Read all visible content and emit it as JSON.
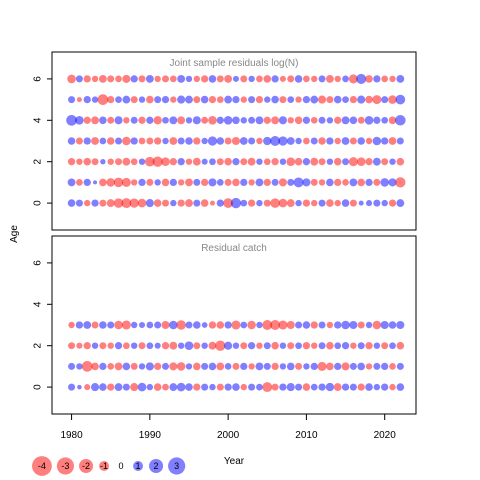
{
  "chart_data": [
    {
      "type": "scatter",
      "title": "Joint sample residuals log(N)",
      "ylabel": "Age",
      "xlim": [
        1977.5,
        2024
      ],
      "ylim": [
        -1.3,
        7.3
      ],
      "x_ticks": [
        1980,
        1990,
        2000,
        2010,
        2020
      ],
      "y_ticks": [
        0,
        2,
        4,
        6
      ],
      "years": [
        1980,
        1981,
        1982,
        1983,
        1984,
        1985,
        1986,
        1987,
        1988,
        1989,
        1990,
        1991,
        1992,
        1993,
        1994,
        1995,
        1996,
        1997,
        1998,
        1999,
        2000,
        2001,
        2002,
        2003,
        2004,
        2005,
        2006,
        2007,
        2008,
        2009,
        2010,
        2011,
        2012,
        2013,
        2014,
        2015,
        2016,
        2017,
        2018,
        2019,
        2020,
        2021,
        2022
      ],
      "series": [
        {
          "age": 6,
          "residuals": [
            -1.8,
            1.2,
            -1.3,
            -1.0,
            -1.5,
            -1.2,
            -1.1,
            -1.6,
            1.3,
            -1.2,
            1.5,
            -1.0,
            -1.2,
            -1.1,
            1.5,
            1.0,
            -1.0,
            -1.3,
            1.4,
            -1.2,
            -1.5,
            0.9,
            -1.2,
            1.0,
            -1.1,
            -1.4,
            1.3,
            -0.9,
            -1.2,
            1.4,
            -1.1,
            -1.0,
            1.2,
            -1.5,
            -1.0,
            1.1,
            -2.0,
            2.5,
            -1.4,
            1.3,
            -1.1,
            -1.0,
            1.5
          ]
        },
        {
          "age": 5,
          "residuals": [
            1.2,
            -0.6,
            1.3,
            1.0,
            -2.8,
            -1.3,
            1.1,
            1.5,
            -1.2,
            1.0,
            -1.4,
            1.2,
            1.3,
            -1.0,
            1.6,
            1.5,
            -1.2,
            1.4,
            -1.3,
            -1.1,
            1.5,
            1.3,
            -1.0,
            1.2,
            -1.3,
            1.0,
            1.4,
            -1.2,
            1.1,
            -1.0,
            1.3,
            1.5,
            -1.6,
            -1.2,
            1.4,
            1.1,
            -1.3,
            1.6,
            -1.4,
            -2.0,
            1.2,
            -1.8,
            2.3
          ]
        },
        {
          "age": 4,
          "residuals": [
            2.8,
            1.8,
            -1.3,
            -1.5,
            1.4,
            -1.2,
            1.6,
            -1.0,
            1.2,
            -1.3,
            1.3,
            -1.7,
            1.1,
            1.5,
            -1.5,
            1.0,
            1.6,
            -1.2,
            -1.8,
            1.3,
            1.8,
            1.4,
            1.0,
            1.2,
            1.5,
            -1.3,
            -1.5,
            1.6,
            -1.0,
            -1.4,
            1.3,
            -1.1,
            1.2,
            1.0,
            -1.3,
            1.5,
            1.4,
            -1.2,
            1.8,
            1.3,
            1.1,
            -1.4,
            2.7
          ]
        },
        {
          "age": 3,
          "residuals": [
            1.4,
            -1.2,
            1.3,
            -1.5,
            1.1,
            -1.4,
            1.2,
            -1.8,
            1.3,
            -1.1,
            -1.2,
            -1.3,
            1.0,
            -1.5,
            1.2,
            1.4,
            -1.3,
            1.0,
            2.1,
            1.4,
            -1.2,
            -1.6,
            1.5,
            1.2,
            -1.0,
            1.7,
            2.4,
            2.1,
            1.5,
            1.0,
            -1.1,
            1.2,
            -1.4,
            1.3,
            -1.0,
            1.5,
            -1.2,
            1.4,
            -1.0,
            1.8,
            1.3,
            -1.5,
            1.2
          ]
        },
        {
          "age": 2,
          "residuals": [
            -1.3,
            -1.0,
            -1.4,
            -1.2,
            0.7,
            -1.0,
            -1.2,
            -1.5,
            -1.1,
            1.0,
            -2.3,
            -2.6,
            -1.8,
            -1.3,
            1.3,
            -1.0,
            -1.5,
            0.9,
            1.1,
            -1.2,
            -1.4,
            1.3,
            -1.2,
            -1.5,
            1.0,
            -1.1,
            -1.3,
            1.0,
            -1.8,
            -1.4,
            1.3,
            -1.5,
            -1.2,
            1.0,
            -1.4,
            1.2,
            -2.0,
            -1.8,
            -1.3,
            1.5,
            -1.2,
            1.0,
            -1.4
          ]
        },
        {
          "age": 1,
          "residuals": [
            1.5,
            -1.1,
            1.3,
            0.4,
            -1.4,
            -1.8,
            -2.2,
            -2.0,
            -1.0,
            1.3,
            -1.2,
            1.0,
            -1.4,
            1.3,
            -1.0,
            -1.5,
            1.2,
            -1.3,
            1.6,
            1.1,
            -1.2,
            -1.4,
            1.3,
            -1.0,
            1.5,
            -1.3,
            1.2,
            -1.6,
            1.2,
            2.4,
            1.6,
            -1.2,
            -1.0,
            1.4,
            -1.3,
            -1.1,
            1.5,
            -1.4,
            1.3,
            -1.2,
            1.8,
            1.6,
            -2.6
          ]
        },
        {
          "age": 0,
          "residuals": [
            1.4,
            1.2,
            -1.0,
            1.3,
            -1.2,
            -1.5,
            -2.2,
            -2.4,
            -2.1,
            -1.8,
            1.6,
            -1.4,
            -1.2,
            1.0,
            -1.3,
            -1.5,
            1.2,
            -1.4,
            -0.6,
            1.3,
            -2.3,
            2.6,
            1.1,
            -1.3,
            1.0,
            -1.2,
            -2.2,
            -1.8,
            -1.5,
            1.0,
            -1.3,
            -1.0,
            1.2,
            -1.4,
            -1.0,
            1.4,
            -1.2,
            0.6,
            0.9,
            1.2,
            1.0,
            -1.3,
            1.5
          ]
        }
      ]
    },
    {
      "type": "scatter",
      "title": "Residual catch",
      "ylabel": "Age",
      "xlabel": "Year",
      "xlim": [
        1977.5,
        2024
      ],
      "ylim": [
        -1.3,
        7.3
      ],
      "x_ticks": [
        1980,
        1990,
        2000,
        2010,
        2020
      ],
      "y_ticks": [
        0,
        2,
        4,
        6
      ],
      "years": [
        1980,
        1981,
        1982,
        1983,
        1984,
        1985,
        1986,
        1987,
        1988,
        1989,
        1990,
        1991,
        1992,
        1993,
        1994,
        1995,
        1996,
        1997,
        1998,
        1999,
        2000,
        2001,
        2002,
        2003,
        2004,
        2005,
        2006,
        2007,
        2008,
        2009,
        2010,
        2011,
        2012,
        2013,
        2014,
        2015,
        2016,
        2017,
        2018,
        2019,
        2020,
        2021,
        2022
      ],
      "series": [
        {
          "age": 3,
          "residuals": [
            -1.0,
            1.3,
            1.5,
            -1.2,
            1.4,
            1.2,
            -1.8,
            -2.0,
            1.0,
            0.9,
            1.1,
            1.2,
            -1.6,
            1.8,
            -2.2,
            1.2,
            1.4,
            0.8,
            -1.3,
            -1.4,
            1.3,
            -2.0,
            1.1,
            -1.8,
            1.0,
            -2.4,
            -2.4,
            -2.0,
            -1.6,
            1.2,
            1.4,
            -1.3,
            1.2,
            -1.0,
            1.3,
            1.8,
            1.6,
            -1.2,
            1.0,
            -1.8,
            1.6,
            1.4,
            1.6
          ]
        },
        {
          "age": 2,
          "residuals": [
            -1.2,
            -0.9,
            -1.3,
            1.0,
            -1.2,
            -1.0,
            1.3,
            -1.1,
            1.0,
            -1.2,
            1.1,
            0.9,
            -1.3,
            -1.5,
            1.0,
            1.8,
            -1.2,
            1.0,
            -1.5,
            -2.6,
            1.6,
            1.0,
            -1.2,
            1.3,
            -1.0,
            1.2,
            -1.4,
            1.0,
            -1.2,
            1.1,
            -1.3,
            -1.0,
            1.2,
            -1.4,
            1.1,
            1.3,
            -1.0,
            1.2,
            -1.3,
            1.0,
            -1.2,
            1.1,
            -1.4
          ]
        },
        {
          "age": 1,
          "residuals": [
            1.2,
            1.0,
            -2.8,
            -1.4,
            1.3,
            -1.1,
            -1.5,
            1.4,
            -1.2,
            1.0,
            1.6,
            -1.3,
            1.2,
            -1.6,
            -1.8,
            1.0,
            -1.4,
            1.2,
            1.4,
            -1.5,
            1.1,
            -1.2,
            1.3,
            -1.0,
            1.5,
            1.2,
            -1.3,
            1.0,
            1.4,
            -1.2,
            1.0,
            1.3,
            -2.0,
            -1.4,
            1.3,
            -1.6,
            1.2,
            1.4,
            -1.0,
            1.2,
            1.3,
            -1.1,
            1.2
          ]
        },
        {
          "age": 0,
          "residuals": [
            1.2,
            0.5,
            -0.9,
            1.6,
            1.4,
            -1.3,
            1.5,
            1.2,
            -1.6,
            1.8,
            1.0,
            -1.4,
            -1.1,
            1.5,
            1.8,
            1.4,
            -1.3,
            1.2,
            1.0,
            -1.2,
            1.3,
            1.4,
            -1.0,
            1.2,
            1.1,
            -2.4,
            -1.2,
            1.3,
            1.6,
            1.2,
            -1.4,
            1.1,
            1.3,
            1.7,
            -1.5,
            1.3,
            1.2,
            -1.3,
            1.4,
            1.0,
            1.3,
            -1.0,
            1.4
          ]
        }
      ]
    }
  ],
  "x_axis_title": "Year",
  "y_axis_title": "Age",
  "legend": {
    "entries": [
      -4,
      -3,
      -2,
      -1,
      0,
      1,
      2,
      3
    ],
    "labels": [
      "-4",
      "-3",
      "-2",
      "-1",
      "0",
      "1",
      "2",
      "3"
    ]
  },
  "colors": {
    "negative": "#ff0000",
    "positive": "#0000ff",
    "panel_title": "#888888"
  }
}
